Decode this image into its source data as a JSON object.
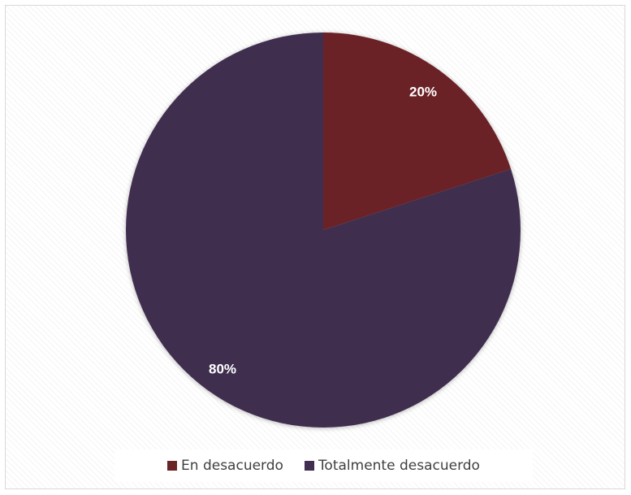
{
  "chart_data": {
    "type": "pie",
    "title": "",
    "slices": [
      {
        "label": "En desacuerdo",
        "value": 20,
        "display": "20%",
        "color": "#6b2426"
      },
      {
        "label": "Totalmente desacuerdo",
        "value": 80,
        "display": "80%",
        "color": "#402f50"
      }
    ],
    "start_angle_deg": 0,
    "direction": "clockwise",
    "legend_position": "bottom"
  }
}
